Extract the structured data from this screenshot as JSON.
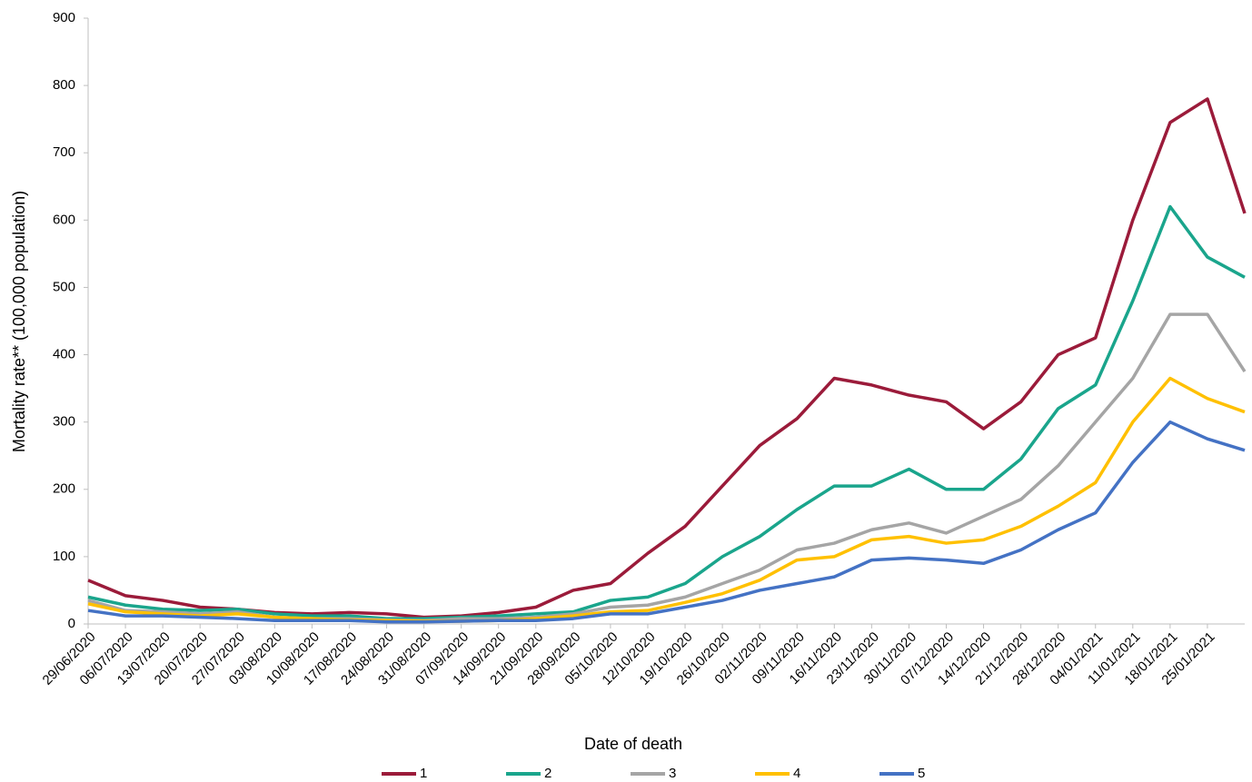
{
  "chart_data": {
    "type": "line",
    "x_label": "Date of death",
    "y_label": "Mortality rate** (100,000 population)",
    "categories": [
      "29/06/2020",
      "06/07/2020",
      "13/07/2020",
      "20/07/2020",
      "27/07/2020",
      "03/08/2020",
      "10/08/2020",
      "17/08/2020",
      "24/08/2020",
      "31/08/2020",
      "07/09/2020",
      "14/09/2020",
      "21/09/2020",
      "28/09/2020",
      "05/10/2020",
      "12/10/2020",
      "19/10/2020",
      "26/10/2020",
      "02/11/2020",
      "09/11/2020",
      "16/11/2020",
      "23/11/2020",
      "30/11/2020",
      "07/12/2020",
      "14/12/2020",
      "21/12/2020",
      "28/12/2020",
      "04/01/2021",
      "11/01/2021",
      "18/01/2021",
      "25/01/2021",
      null
    ],
    "series": [
      {
        "name": "1",
        "color": "#9b1b3a",
        "values": [
          65,
          42,
          35,
          25,
          22,
          17,
          15,
          17,
          15,
          10,
          12,
          17,
          25,
          50,
          60,
          105,
          145,
          205,
          265,
          305,
          365,
          355,
          340,
          330,
          290,
          330,
          400,
          425,
          600,
          745,
          780,
          610
        ]
      },
      {
        "name": "2",
        "color": "#1aa58c",
        "values": [
          40,
          28,
          22,
          20,
          22,
          15,
          12,
          12,
          8,
          8,
          10,
          12,
          15,
          18,
          35,
          40,
          60,
          100,
          130,
          170,
          205,
          205,
          230,
          200,
          200,
          245,
          320,
          355,
          480,
          620,
          545,
          515
        ]
      },
      {
        "name": "3",
        "color": "#a5a5a5",
        "values": [
          35,
          20,
          18,
          15,
          18,
          10,
          8,
          8,
          6,
          5,
          8,
          8,
          10,
          15,
          25,
          28,
          40,
          60,
          80,
          110,
          120,
          140,
          150,
          135,
          160,
          185,
          235,
          300,
          365,
          460,
          460,
          375
        ]
      },
      {
        "name": "4",
        "color": "#ffc000",
        "values": [
          30,
          18,
          15,
          12,
          15,
          10,
          8,
          6,
          5,
          4,
          4,
          5,
          8,
          12,
          18,
          20,
          32,
          45,
          65,
          95,
          100,
          125,
          130,
          120,
          125,
          145,
          175,
          210,
          300,
          365,
          335,
          315
        ]
      },
      {
        "name": "5",
        "color": "#4472c4",
        "values": [
          20,
          12,
          12,
          10,
          8,
          5,
          5,
          5,
          3,
          3,
          4,
          5,
          5,
          8,
          15,
          15,
          25,
          35,
          50,
          60,
          70,
          95,
          98,
          95,
          90,
          110,
          140,
          165,
          240,
          300,
          275,
          258
        ]
      }
    ],
    "ylim": [
      0,
      900
    ],
    "yticks": [
      0,
      100,
      200,
      300,
      400,
      500,
      600,
      700,
      800,
      900
    ],
    "grid": false,
    "legend": "bottom"
  }
}
